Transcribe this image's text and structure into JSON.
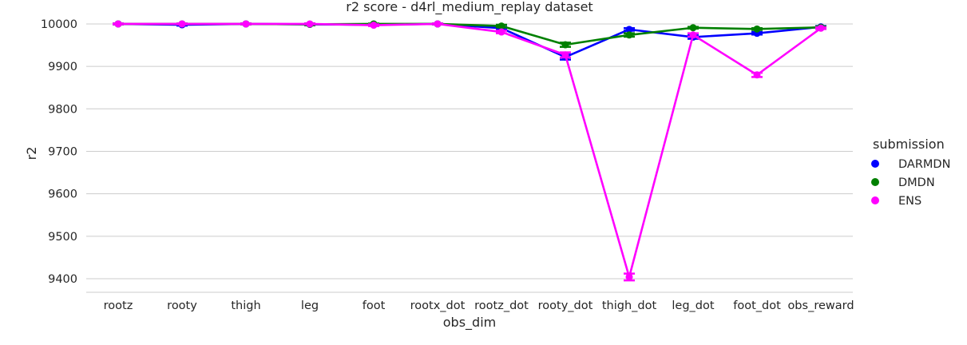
{
  "chart_data": {
    "type": "line",
    "title": "r2 score - d4rl_medium_replay dataset",
    "xlabel": "obs_dim",
    "ylabel": "r2",
    "ylim": [
      9368,
      10030
    ],
    "yticks": [
      9400,
      9500,
      9600,
      9700,
      9800,
      9900,
      10000
    ],
    "grid": "horizontal",
    "legend_title": "submission",
    "legend_position": "right",
    "categories": [
      "rootz",
      "rooty",
      "thigh",
      "leg",
      "foot",
      "rootx_dot",
      "rootz_dot",
      "rooty_dot",
      "thigh_dot",
      "leg_dot",
      "foot_dot",
      "obs_reward"
    ],
    "series": [
      {
        "name": "DARMDN",
        "color": "#0000ff",
        "values": [
          10000,
          9998,
          10000,
          9999,
          9998,
          10000,
          9990,
          9922,
          9987,
          9969,
          9978,
          9993
        ],
        "errors": [
          1,
          2,
          1,
          2,
          2,
          1,
          3,
          6,
          3,
          4,
          3,
          2
        ]
      },
      {
        "name": "DMDN",
        "color": "#008000",
        "values": [
          10000,
          10000,
          10000,
          9999,
          10000,
          10000,
          9995,
          9951,
          9974,
          9991,
          9988,
          9992
        ],
        "errors": [
          1,
          1,
          1,
          2,
          1,
          1,
          3,
          5,
          4,
          2,
          2,
          2
        ]
      },
      {
        "name": "ENS",
        "color": "#ff00ff",
        "values": [
          10000,
          10000,
          10000,
          10000,
          9997,
          10000,
          9981,
          9927,
          9404,
          9974,
          9880,
          9990
        ],
        "errors": [
          1,
          1,
          1,
          1,
          2,
          1,
          3,
          6,
          8,
          4,
          5,
          2
        ]
      }
    ]
  }
}
